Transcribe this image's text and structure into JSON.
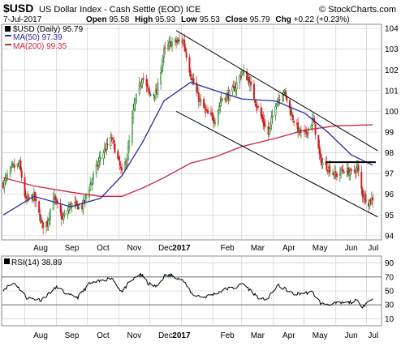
{
  "header": {
    "symbol": "$USD",
    "name": "US Dollar Index - Cash Settle (EOD)",
    "exchange": "ICE",
    "source": "© StockCharts.com",
    "date": "7-Jul-2017",
    "open_label": "Open",
    "open": "95.58",
    "high_label": "High",
    "high": "95.93",
    "low_label": "Low",
    "low": "95.53",
    "close_label": "Close",
    "close": "95.79",
    "chg_label": "Chg",
    "chg": "+0.22 (+0.23%)"
  },
  "legend": {
    "price": "$USD (Daily) 95.79",
    "ma50": "MA(50) 97.39",
    "ma200": "MA(200) 99.35"
  },
  "rsi_panel": {
    "label": "RSI(14) 38.89"
  },
  "colors": {
    "up_candle": "#1a7a1a",
    "down_candle": "#cc2222",
    "ma50": "#2a2aa0",
    "ma200": "#cc2244",
    "channel": "#000000",
    "rsi_line": "#000000",
    "rsi_fill": "#2e7d32",
    "grid": "#c8c8c8"
  },
  "chart_data": [
    {
      "type": "candlestick",
      "x_labels": [
        "Aug",
        "Sep",
        "Oct",
        "Nov",
        "Dec",
        "2017",
        "Feb",
        "Mar",
        "Apr",
        "May",
        "Jun",
        "Jul"
      ],
      "y_ticks": [
        94,
        95,
        96,
        97,
        98,
        99,
        100,
        101,
        102,
        103,
        104
      ],
      "ylim": [
        93.8,
        104.2
      ],
      "x_range": [
        "2016-07-11",
        "2017-07-14"
      ],
      "ohlc_path": [
        [
          "2016-07-11",
          96.5
        ],
        [
          "2016-07-20",
          97.3
        ],
        [
          "2016-07-27",
          97.4
        ],
        [
          "2016-08-02",
          95.7
        ],
        [
          "2016-08-10",
          95.9
        ],
        [
          "2016-08-18",
          94.5
        ],
        [
          "2016-08-23",
          94.6
        ],
        [
          "2016-08-29",
          95.9
        ],
        [
          "2016-09-07",
          94.8
        ],
        [
          "2016-09-15",
          95.5
        ],
        [
          "2016-09-26",
          95.4
        ],
        [
          "2016-10-05",
          96.6
        ],
        [
          "2016-10-14",
          97.8
        ],
        [
          "2016-10-25",
          98.7
        ],
        [
          "2016-11-04",
          97.0
        ],
        [
          "2016-11-09",
          97.8
        ],
        [
          "2016-11-16",
          100.3
        ],
        [
          "2016-11-24",
          101.7
        ],
        [
          "2016-12-01",
          100.8
        ],
        [
          "2016-12-08",
          100.9
        ],
        [
          "2016-12-15",
          102.9
        ],
        [
          "2016-12-22",
          103.3
        ],
        [
          "2017-01-03",
          103.4
        ],
        [
          "2017-01-10",
          101.8
        ],
        [
          "2017-01-18",
          100.6
        ],
        [
          "2017-01-26",
          99.9
        ],
        [
          "2017-02-03",
          99.6
        ],
        [
          "2017-02-09",
          100.6
        ],
        [
          "2017-02-17",
          100.8
        ],
        [
          "2017-02-23",
          101.2
        ],
        [
          "2017-03-01",
          101.9
        ],
        [
          "2017-03-07",
          101.6
        ],
        [
          "2017-03-15",
          100.4
        ],
        [
          "2017-03-22",
          99.5
        ],
        [
          "2017-03-27",
          98.9
        ],
        [
          "2017-04-03",
          100.4
        ],
        [
          "2017-04-11",
          101.0
        ],
        [
          "2017-04-19",
          99.8
        ],
        [
          "2017-04-26",
          99.0
        ],
        [
          "2017-05-02",
          98.9
        ],
        [
          "2017-05-10",
          99.6
        ],
        [
          "2017-05-17",
          97.6
        ],
        [
          "2017-05-24",
          97.3
        ],
        [
          "2017-06-01",
          96.9
        ],
        [
          "2017-06-09",
          97.2
        ],
        [
          "2017-06-16",
          97.0
        ],
        [
          "2017-06-22",
          97.3
        ],
        [
          "2017-06-27",
          96.0
        ],
        [
          "2017-07-03",
          95.6
        ],
        [
          "2017-07-07",
          95.8
        ]
      ],
      "ma50": [
        [
          "2016-07-11",
          95.0
        ],
        [
          "2016-08-10",
          95.9
        ],
        [
          "2016-09-15",
          95.4
        ],
        [
          "2016-10-14",
          95.8
        ],
        [
          "2016-11-04",
          96.9
        ],
        [
          "2016-11-24",
          98.5
        ],
        [
          "2016-12-15",
          100.5
        ],
        [
          "2017-01-10",
          101.4
        ],
        [
          "2017-02-03",
          101.0
        ],
        [
          "2017-03-01",
          100.6
        ],
        [
          "2017-04-03",
          100.5
        ],
        [
          "2017-05-02",
          99.9
        ],
        [
          "2017-05-24",
          99.0
        ],
        [
          "2017-06-16",
          97.9
        ],
        [
          "2017-07-07",
          97.4
        ]
      ],
      "ma200": [
        [
          "2016-07-11",
          96.8
        ],
        [
          "2016-08-10",
          96.4
        ],
        [
          "2016-09-15",
          96.1
        ],
        [
          "2016-10-14",
          95.9
        ],
        [
          "2016-11-04",
          95.9
        ],
        [
          "2016-11-24",
          96.3
        ],
        [
          "2016-12-15",
          96.8
        ],
        [
          "2017-01-10",
          97.5
        ],
        [
          "2017-02-03",
          97.8
        ],
        [
          "2017-03-01",
          98.3
        ],
        [
          "2017-04-03",
          98.7
        ],
        [
          "2017-05-02",
          99.1
        ],
        [
          "2017-06-01",
          99.3
        ],
        [
          "2017-07-07",
          99.35
        ]
      ],
      "channel_upper": [
        [
          "2016-12-27",
          103.9
        ],
        [
          "2017-07-12",
          98.1
        ]
      ],
      "channel_lower": [
        [
          "2016-12-27",
          100.0
        ],
        [
          "2017-07-12",
          94.9
        ]
      ],
      "horizontal_line": [
        [
          "2017-05-22",
          97.55
        ],
        [
          "2017-07-10",
          97.55
        ]
      ]
    },
    {
      "type": "line",
      "name": "RSI(14)",
      "y_ticks": [
        10,
        30,
        50,
        70,
        90
      ],
      "ylim": [
        0,
        100
      ],
      "reference_lines": [
        30,
        70
      ],
      "values": [
        [
          "2016-07-11",
          52
        ],
        [
          "2016-07-22",
          62
        ],
        [
          "2016-08-03",
          40
        ],
        [
          "2016-08-17",
          37
        ],
        [
          "2016-08-25",
          47
        ],
        [
          "2016-09-02",
          56
        ],
        [
          "2016-09-12",
          44
        ],
        [
          "2016-09-22",
          41
        ],
        [
          "2016-10-03",
          60
        ],
        [
          "2016-10-14",
          64
        ],
        [
          "2016-10-25",
          69
        ],
        [
          "2016-11-04",
          48
        ],
        [
          "2016-11-10",
          60
        ],
        [
          "2016-11-22",
          75
        ],
        [
          "2016-11-30",
          60
        ],
        [
          "2016-12-08",
          56
        ],
        [
          "2016-12-16",
          72
        ],
        [
          "2016-12-23",
          73
        ],
        [
          "2017-01-03",
          64
        ],
        [
          "2017-01-12",
          45
        ],
        [
          "2017-01-23",
          41
        ],
        [
          "2017-02-03",
          46
        ],
        [
          "2017-02-14",
          53
        ],
        [
          "2017-02-24",
          55
        ],
        [
          "2017-03-02",
          61
        ],
        [
          "2017-03-10",
          50
        ],
        [
          "2017-03-20",
          37
        ],
        [
          "2017-03-27",
          40
        ],
        [
          "2017-04-05",
          58
        ],
        [
          "2017-04-12",
          53
        ],
        [
          "2017-04-21",
          45
        ],
        [
          "2017-05-01",
          47
        ],
        [
          "2017-05-09",
          48
        ],
        [
          "2017-05-18",
          31
        ],
        [
          "2017-05-25",
          31
        ],
        [
          "2017-06-02",
          32
        ],
        [
          "2017-06-12",
          33
        ],
        [
          "2017-06-21",
          36
        ],
        [
          "2017-06-27",
          28
        ],
        [
          "2017-07-03",
          35
        ],
        [
          "2017-07-07",
          38.9
        ]
      ]
    }
  ]
}
